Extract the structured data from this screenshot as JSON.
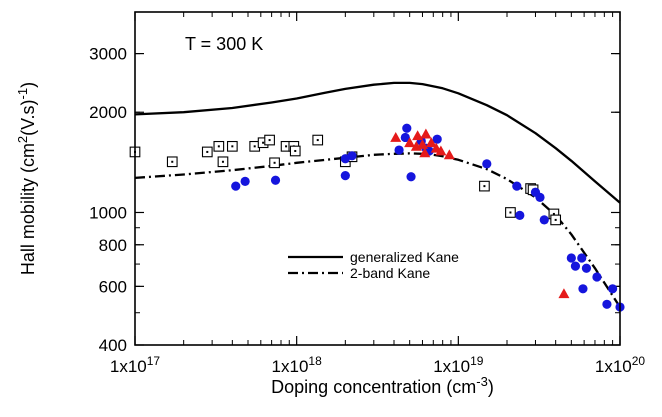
{
  "chart_data": {
    "type": "scatter",
    "title": "",
    "annotation": "T = 300 K",
    "xlabel": {
      "base": "Doping concentration (cm",
      "sup": "-3",
      "tail": ")"
    },
    "ylabel": {
      "a": "Hall mobility (cm",
      "sup1": "2",
      "b": "(V.s)",
      "sup2": "-1",
      "c": ")"
    },
    "x_scale": "log",
    "y_scale": "log",
    "xlim": [
      1e+17,
      1e+20
    ],
    "ylim": [
      400,
      4000
    ],
    "x_ticks": [
      {
        "value": 1e+17,
        "label": "1x10",
        "exp": "17"
      },
      {
        "value": 1e+18,
        "label": "1x10",
        "exp": "18"
      },
      {
        "value": 1e+19,
        "label": "1x10",
        "exp": "19"
      },
      {
        "value": 1e+20,
        "label": "1x10",
        "exp": "20"
      }
    ],
    "y_ticks": [
      {
        "value": 400,
        "label": "400"
      },
      {
        "value": 600,
        "label": "600"
      },
      {
        "value": 800,
        "label": "800"
      },
      {
        "value": 1000,
        "label": "1000"
      },
      {
        "value": 2000,
        "label": "2000"
      },
      {
        "value": 3000,
        "label": "3000"
      }
    ],
    "legend_position": "lower-middle",
    "series": [
      {
        "name": "generalized Kane",
        "kind": "line",
        "style": "solid",
        "color": "#000000",
        "x": [
          1e+17,
          2e+17,
          4e+17,
          7e+17,
          1e+18,
          1.5e+18,
          2e+18,
          3e+18,
          4e+18,
          5e+18,
          6e+18,
          8e+18,
          1e+19,
          1.5e+19,
          2e+19,
          3e+19,
          4e+19,
          5e+19,
          7e+19,
          1e+20
        ],
        "y": [
          1970,
          2000,
          2060,
          2140,
          2200,
          2290,
          2350,
          2420,
          2450,
          2450,
          2430,
          2360,
          2280,
          2100,
          1960,
          1730,
          1560,
          1430,
          1240,
          1070
        ]
      },
      {
        "name": "2-band Kane",
        "kind": "line",
        "style": "dashdot",
        "color": "#000000",
        "x": [
          1e+17,
          2e+17,
          4e+17,
          7e+17,
          1e+18,
          2e+18,
          3e+18,
          4e+18,
          5e+18,
          6e+18,
          7e+18,
          8e+18,
          1e+19,
          1.5e+19,
          2e+19,
          3e+19,
          4e+19,
          5e+19,
          7e+19,
          1e+20
        ],
        "y": [
          1270,
          1300,
          1340,
          1380,
          1410,
          1460,
          1490,
          1500,
          1505,
          1500,
          1490,
          1475,
          1440,
          1350,
          1260,
          1110,
          980,
          860,
          680,
          520
        ]
      },
      {
        "name": "open squares",
        "kind": "marker",
        "marker": "dotted-square",
        "color": "#000000",
        "x": [
          1e+17,
          1.7e+17,
          2.8e+17,
          3.3e+17,
          3.5e+17,
          4e+17,
          5.5e+17,
          6.2e+17,
          6.8e+17,
          7.3e+17,
          8.6e+17,
          9.6e+17,
          9.8e+17,
          1.35e+18,
          2e+18,
          2.2e+18,
          1.45e+19,
          2.1e+19,
          2.8e+19,
          2.9e+19,
          3.9e+19,
          4e+19
        ],
        "y": [
          1520,
          1420,
          1520,
          1580,
          1420,
          1580,
          1580,
          1620,
          1650,
          1410,
          1580,
          1580,
          1530,
          1650,
          1420,
          1470,
          1200,
          1000,
          1180,
          1170,
          990,
          950
        ]
      },
      {
        "name": "filled circles",
        "kind": "marker",
        "marker": "circle",
        "color": "#1515dd",
        "x": [
          4.2e+17,
          4.8e+17,
          7.4e+17,
          2e+18,
          2.2e+18,
          2e+18,
          4.3e+18,
          4.8e+18,
          4.7e+18,
          5.1e+18,
          5.9e+18,
          6.3e+18,
          6.6e+18,
          7.4e+18,
          1.5e+19,
          2.3e+19,
          2.4e+19,
          3e+19,
          3.2e+19,
          3.4e+19,
          5e+19,
          5.3e+19,
          5.8e+19,
          6.2e+19,
          5.9e+19,
          7.2e+19,
          8.3e+19,
          9e+19,
          1e+20
        ],
        "y": [
          1200,
          1240,
          1250,
          1290,
          1480,
          1450,
          1540,
          1790,
          1680,
          1280,
          1640,
          1560,
          1530,
          1660,
          1400,
          1200,
          980,
          1150,
          1110,
          950,
          730,
          690,
          730,
          680,
          590,
          640,
          530,
          590,
          520
        ]
      },
      {
        "name": "red triangles",
        "kind": "marker",
        "marker": "triangle",
        "color": "#e51a1a",
        "x": [
          4.1e+18,
          5e+18,
          5.5e+18,
          5.6e+18,
          6e+18,
          6.2e+18,
          6.3e+18,
          6.8e+18,
          7.3e+18,
          7.8e+18,
          8.8e+18,
          4.5e+19
        ],
        "y": [
          1680,
          1620,
          1580,
          1700,
          1600,
          1510,
          1720,
          1620,
          1560,
          1530,
          1490,
          570
        ]
      }
    ]
  }
}
